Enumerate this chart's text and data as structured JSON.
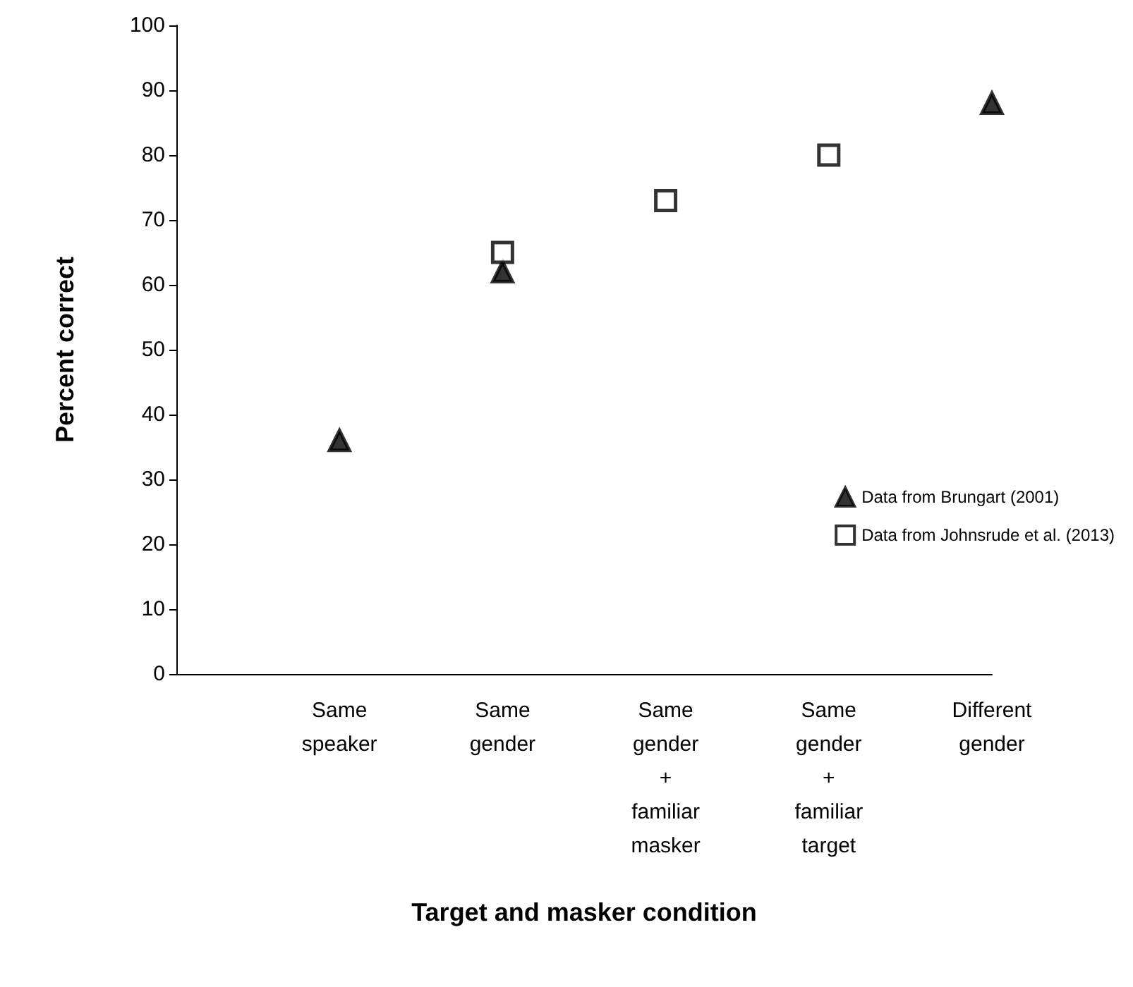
{
  "chart_data": {
    "type": "scatter",
    "xlabel": "Target and masker condition",
    "ylabel": "Percent correct",
    "categories": [
      null,
      "Same\nspeaker",
      "Same\ngender",
      "Same\ngender\n+\nfamiliar\nmasker",
      "Same\ngender\n+\nfamiliar\ntarget",
      "Different\ngender"
    ],
    "series": [
      {
        "name": "Data from Brungart (2001)",
        "color": "#000000",
        "marker": "triangle",
        "values": [
          null,
          36,
          62,
          null,
          null,
          88
        ]
      },
      {
        "name": "Data from Johnsrude et al. (2013)",
        "color": "#000000",
        "marker": "square",
        "values": [
          null,
          null,
          65,
          73,
          80,
          null
        ]
      }
    ],
    "ylim": [
      0,
      100
    ],
    "yticks": [
      0,
      10,
      20,
      30,
      40,
      50,
      60,
      70,
      80,
      90,
      100
    ],
    "grid": false,
    "legend": "right"
  }
}
